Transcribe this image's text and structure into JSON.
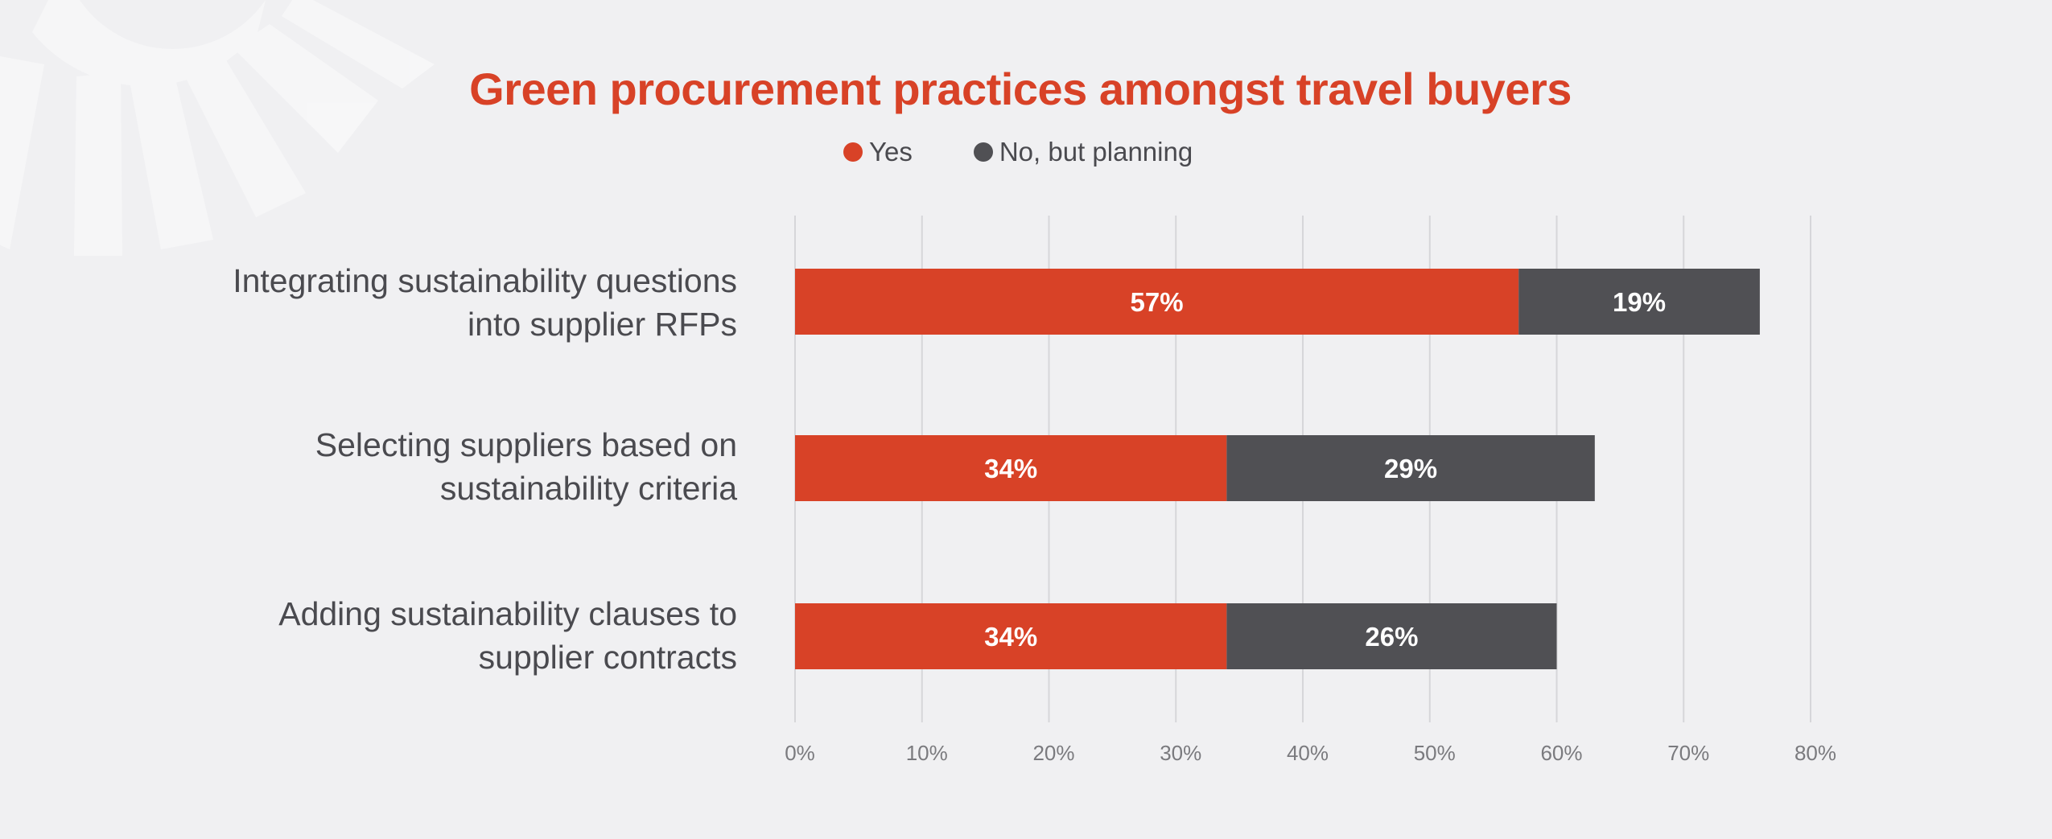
{
  "chart_data": {
    "type": "bar",
    "orientation": "horizontal",
    "stacked": true,
    "title": "Green procurement practices amongst travel buyers",
    "categories": [
      "Integrating sustainability questions into supplier RFPs",
      "Selecting suppliers based on sustainability criteria",
      "Adding sustainability clauses to supplier contracts"
    ],
    "category_lines": [
      [
        "Integrating sustainability questions",
        "into supplier RFPs"
      ],
      [
        "Selecting suppliers based on",
        "sustainability criteria"
      ],
      [
        "Adding sustainability clauses to",
        "supplier contracts"
      ]
    ],
    "series": [
      {
        "name": "Yes",
        "color": "#d84227",
        "values": [
          57,
          34,
          34
        ],
        "labels": [
          "57%",
          "34%",
          "34%"
        ]
      },
      {
        "name": "No, but planning",
        "color": "#505054",
        "values": [
          19,
          29,
          26
        ],
        "labels": [
          "19%",
          "29%",
          "26%"
        ]
      }
    ],
    "xlim": [
      0,
      80
    ],
    "xticks": [
      0,
      10,
      20,
      30,
      40,
      50,
      60,
      70,
      80
    ],
    "xtick_labels": [
      "0%",
      "10%",
      "20%",
      "30%",
      "40%",
      "50%",
      "60%",
      "70%",
      "80%"
    ],
    "grid": true,
    "legend_position": "top-center"
  }
}
